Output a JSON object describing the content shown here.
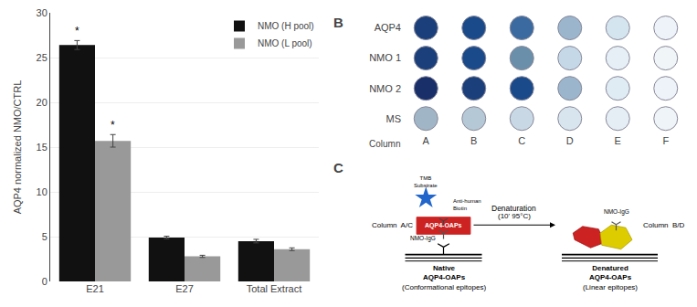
{
  "chart_data": [
    {
      "type": "bar",
      "ylabel": "AQP4 normalized NMO/CTRL",
      "categories": [
        "E21",
        "E27",
        "Total Extract"
      ],
      "series": [
        {
          "name": "NMO (H pool)",
          "color": "#111111",
          "values": [
            26.4,
            4.9,
            4.5
          ],
          "errors": [
            0.5,
            0.15,
            0.2
          ]
        },
        {
          "name": "NMO (L pool)",
          "color": "#999999",
          "values": [
            15.7,
            2.8,
            3.6
          ],
          "errors": [
            0.7,
            0.12,
            0.15
          ]
        }
      ],
      "ylim": [
        0,
        30
      ],
      "yticks": [
        0,
        5,
        10,
        15,
        20,
        25,
        30
      ],
      "grid": true,
      "legend": "upper right",
      "annotations": [
        {
          "text": "*",
          "category": "E21",
          "series": "NMO (H pool)"
        },
        {
          "text": "*",
          "category": "E21",
          "series": "NMO (L pool)"
        }
      ]
    },
    {
      "type": "well_plate",
      "title": "B",
      "rows": [
        "AQP4",
        "NMO 1",
        "NMO 2",
        "MS"
      ],
      "columns": [
        "A",
        "B",
        "C",
        "D",
        "E",
        "F"
      ],
      "xlabel": "Column",
      "colors": [
        [
          "#1a3f7a",
          "#1a4a8a",
          "#3a6aa0",
          "#9ab5cc",
          "#d5e5f0",
          "#edf3f8"
        ],
        [
          "#1a3f7a",
          "#1a4a8a",
          "#6a8faa",
          "#c5d8e8",
          "#e5eff5",
          "#f0f5f8"
        ],
        [
          "#182f6a",
          "#1a3f7a",
          "#1a4a8a",
          "#9ab5cc",
          "#e0ecf4",
          "#edf3f8"
        ],
        [
          "#a0b5c5",
          "#b5c8d5",
          "#c8d8e5",
          "#d8e5ee",
          "#e5eef5",
          "#eff4f8"
        ]
      ]
    },
    {
      "type": "diagram",
      "title": "C",
      "annotations": [
        "Column  A/C",
        "AQP4-OAPs",
        "Denaturation",
        "(10' 95°C)",
        "Column  B/D",
        "Native",
        "AQP4-OAPs",
        "(Conformational epitopes)",
        "Denatured",
        "AQP4-OAPs",
        "(Linear epitopes)",
        "NMO-IgG",
        "Anti-human\nBiotin",
        "TMB\nSubstrate",
        "NMO-IgG"
      ],
      "colors": [
        "#cc2222",
        "#cc2222",
        "#ddcc00",
        "#2266cc"
      ]
    }
  ]
}
